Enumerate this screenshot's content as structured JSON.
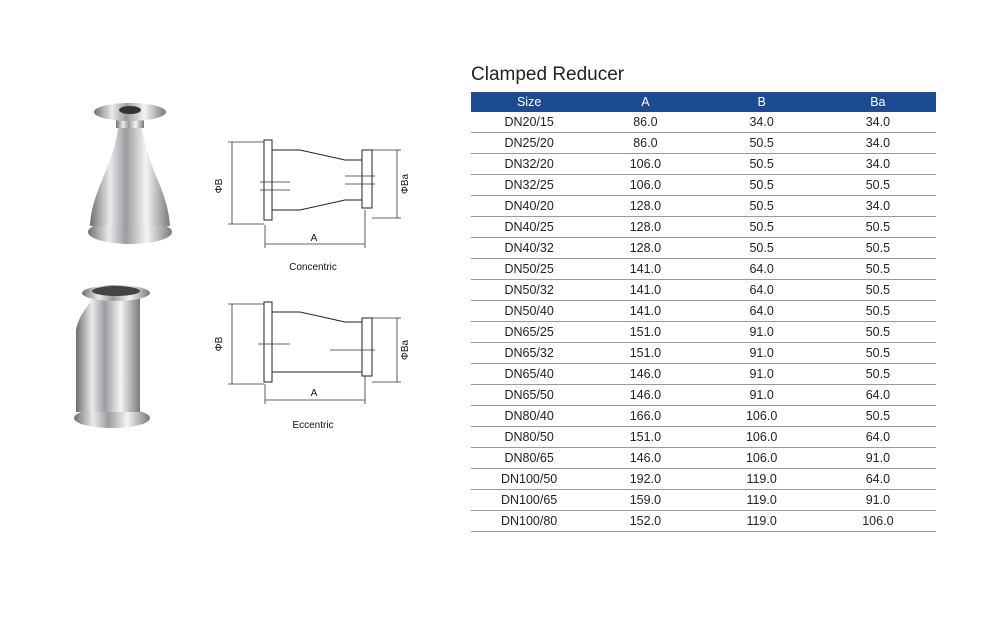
{
  "title": "Clamped Reducer",
  "table": {
    "header": [
      "Size",
      "A",
      "B",
      "Ba"
    ],
    "rows": [
      [
        "DN20/15",
        "86.0",
        "34.0",
        "34.0"
      ],
      [
        "DN25/20",
        "86.0",
        "50.5",
        "34.0"
      ],
      [
        "DN32/20",
        "106.0",
        "50.5",
        "34.0"
      ],
      [
        "DN32/25",
        "106.0",
        "50.5",
        "50.5"
      ],
      [
        "DN40/20",
        "128.0",
        "50.5",
        "34.0"
      ],
      [
        "DN40/25",
        "128.0",
        "50.5",
        "50.5"
      ],
      [
        "DN40/32",
        "128.0",
        "50.5",
        "50.5"
      ],
      [
        "DN50/25",
        "141.0",
        "64.0",
        "50.5"
      ],
      [
        "DN50/32",
        "141.0",
        "64.0",
        "50.5"
      ],
      [
        "DN50/40",
        "141.0",
        "64.0",
        "50.5"
      ],
      [
        "DN65/25",
        "151.0",
        "91.0",
        "50.5"
      ],
      [
        "DN65/32",
        "151.0",
        "91.0",
        "50.5"
      ],
      [
        "DN65/40",
        "146.0",
        "91.0",
        "50.5"
      ],
      [
        "DN65/50",
        "146.0",
        "91.0",
        "64.0"
      ],
      [
        "DN80/40",
        "166.0",
        "106.0",
        "50.5"
      ],
      [
        "DN80/50",
        "151.0",
        "106.0",
        "64.0"
      ],
      [
        "DN80/65",
        "146.0",
        "106.0",
        "91.0"
      ],
      [
        "DN100/50",
        "192.0",
        "119.0",
        "64.0"
      ],
      [
        "DN100/65",
        "159.0",
        "119.0",
        "91.0"
      ],
      [
        "DN100/80",
        "152.0",
        "119.0",
        "106.0"
      ]
    ]
  },
  "drawings": [
    {
      "caption": "Concentric",
      "dim_b": "ΦB",
      "dim_ba": "ΦBa",
      "dim_a": "A"
    },
    {
      "caption": "Eccentric",
      "dim_b": "ΦB",
      "dim_ba": "ΦBa",
      "dim_a": "A"
    }
  ]
}
